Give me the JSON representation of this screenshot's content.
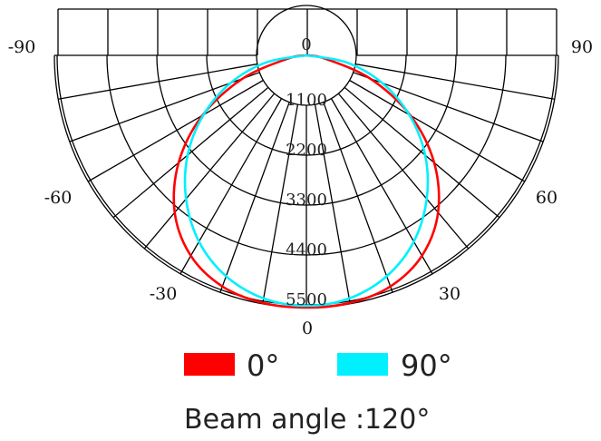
{
  "chart_data": {
    "type": "polar",
    "title": "",
    "angle_ticks": [
      "-90",
      "-60",
      "-30",
      "0",
      "30",
      "60",
      "90"
    ],
    "center_label": "0",
    "radial_ticks": [
      "1100",
      "2200",
      "3300",
      "4400",
      "5500"
    ],
    "radial_max": 5500,
    "angle_range": [
      -90,
      90
    ],
    "grid": true,
    "legend_position": "bottom",
    "series": [
      {
        "name": "0°",
        "color": "#ff0000",
        "angles": [
          -90,
          -80,
          -70,
          -60,
          -50,
          -40,
          -30,
          -20,
          -10,
          0,
          10,
          20,
          30,
          40,
          50,
          60,
          70,
          80,
          90
        ],
        "values": [
          0,
          420,
          1500,
          2650,
          3680,
          4520,
          5100,
          5420,
          5540,
          5560,
          5540,
          5420,
          5100,
          4520,
          3680,
          2650,
          1500,
          420,
          0
        ]
      },
      {
        "name": "90°",
        "color": "#00f0ff",
        "angles": [
          -90,
          -80,
          -70,
          -60,
          -50,
          -40,
          -30,
          -20,
          -10,
          0,
          10,
          20,
          30,
          40,
          50,
          60,
          70,
          80,
          90
        ],
        "values": [
          0,
          900,
          1780,
          2620,
          3420,
          4130,
          4740,
          5180,
          5440,
          5520,
          5440,
          5180,
          4740,
          4130,
          3420,
          2620,
          1780,
          900,
          0
        ]
      }
    ],
    "caption": "Beam angle :120°"
  }
}
